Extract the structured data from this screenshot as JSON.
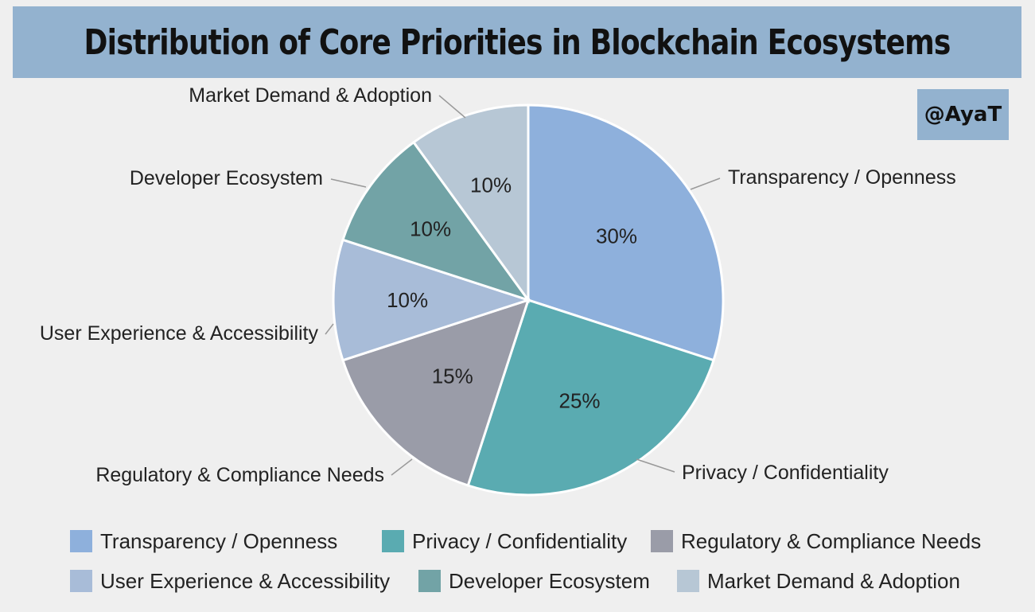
{
  "header": {
    "title": "Distribution of Core Priorities in Blockchain Ecosystems"
  },
  "watermark": {
    "text": "@AyaT"
  },
  "chart_data": {
    "type": "pie",
    "title": "Distribution of Core Priorities in Blockchain Ecosystems",
    "slices": [
      {
        "label": "Transparency / Openness",
        "value": 30,
        "value_label": "30%",
        "color": "#8eb0dc"
      },
      {
        "label": "Privacy / Confidentiality",
        "value": 25,
        "value_label": "25%",
        "color": "#5aabb1"
      },
      {
        "label": "Regulatory & Compliance Needs",
        "value": 15,
        "value_label": "15%",
        "color": "#9a9ca8"
      },
      {
        "label": "User Experience & Accessibility",
        "value": 10,
        "value_label": "10%",
        "color": "#a8bcd8"
      },
      {
        "label": "Developer Ecosystem",
        "value": 10,
        "value_label": "10%",
        "color": "#72a3a6"
      },
      {
        "label": "Market Demand & Adoption",
        "value": 10,
        "value_label": "10%",
        "color": "#b7c7d5"
      }
    ],
    "legend_position": "bottom"
  }
}
